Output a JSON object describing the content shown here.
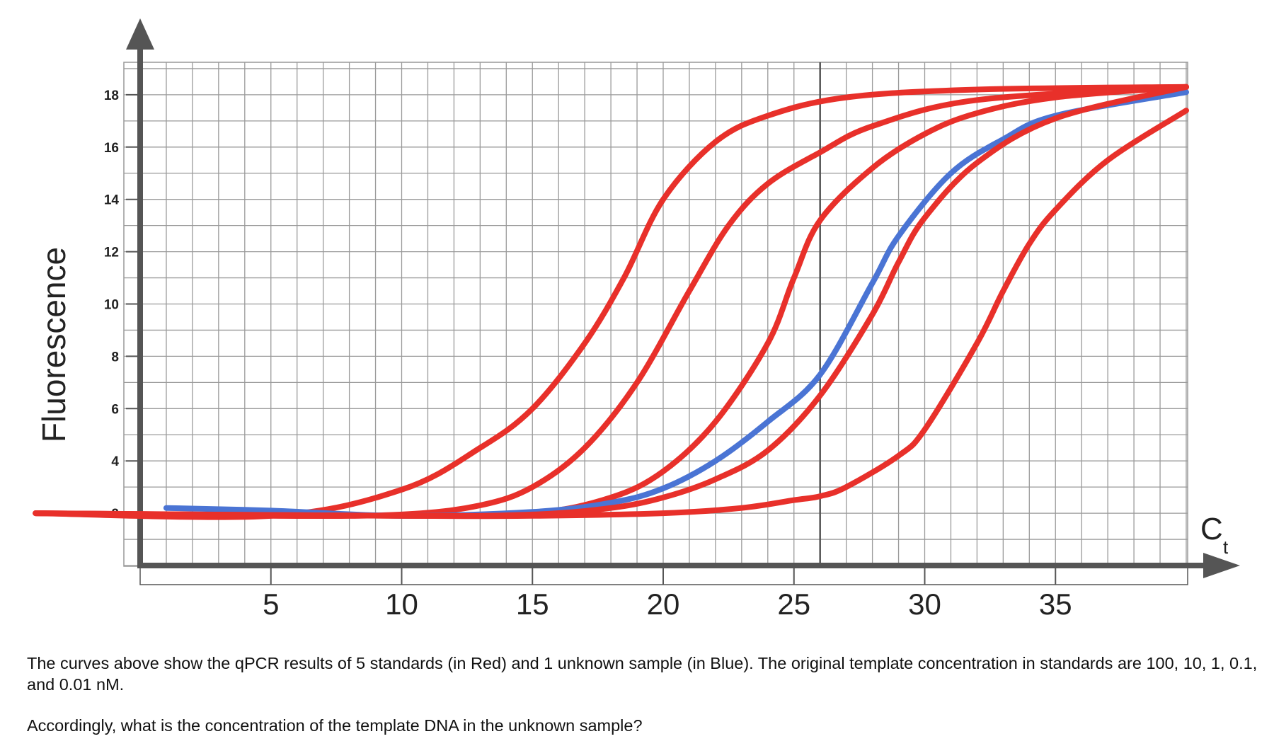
{
  "chart_data": {
    "type": "line",
    "xlabel": "C",
    "xlabel_sub": "t",
    "ylabel": "Fluorescence",
    "x_ticks": [
      5,
      10,
      15,
      20,
      25,
      30,
      35
    ],
    "y_ticks": [
      2,
      4,
      6,
      8,
      10,
      12,
      14,
      16,
      18
    ],
    "xlim": [
      0,
      40
    ],
    "ylim": [
      0,
      19
    ],
    "grid": true,
    "threshold_ct": 26,
    "series": [
      {
        "color": "#e8302a",
        "x": [
          -4,
          5,
          10,
          13,
          15,
          17,
          18.5,
          20,
          22,
          24,
          27,
          32,
          40
        ],
        "y": [
          2.0,
          1.9,
          2.9,
          4.5,
          6.0,
          8.5,
          11.0,
          14.0,
          16.2,
          17.2,
          17.9,
          18.2,
          18.3
        ]
      },
      {
        "color": "#e8302a",
        "x": [
          -4,
          5,
          10,
          13,
          15,
          17,
          19,
          21,
          22.5,
          24,
          26,
          28,
          32,
          40
        ],
        "y": [
          2.0,
          1.9,
          1.95,
          2.3,
          3.0,
          4.5,
          7.0,
          10.5,
          13.0,
          14.6,
          15.8,
          16.8,
          17.8,
          18.3
        ]
      },
      {
        "color": "#e8302a",
        "x": [
          -4,
          10,
          15,
          18,
          20,
          22,
          24,
          25,
          26,
          28,
          30,
          32,
          35,
          40
        ],
        "y": [
          2.0,
          1.9,
          2.0,
          2.6,
          3.6,
          5.5,
          8.5,
          11.0,
          13.2,
          15.2,
          16.5,
          17.3,
          17.9,
          18.3
        ]
      },
      {
        "color": "#4a74d4",
        "x": [
          1,
          5,
          10,
          15,
          18,
          20,
          22,
          24,
          26,
          28,
          29,
          31,
          33,
          35,
          40
        ],
        "y": [
          2.2,
          2.1,
          1.9,
          2.05,
          2.4,
          2.95,
          4.0,
          5.5,
          7.3,
          10.8,
          12.6,
          15.0,
          16.3,
          17.2,
          18.1
        ]
      },
      {
        "color": "#e8302a",
        "x": [
          -4,
          10,
          15,
          18,
          20,
          22,
          24,
          26,
          28,
          29,
          30,
          32,
          35,
          40
        ],
        "y": [
          2.0,
          1.9,
          1.95,
          2.2,
          2.6,
          3.3,
          4.4,
          6.5,
          9.6,
          11.6,
          13.3,
          15.4,
          17.1,
          18.3
        ]
      },
      {
        "color": "#e8302a",
        "x": [
          -4,
          10,
          15,
          20,
          23,
          25,
          26,
          27,
          29,
          30,
          32,
          33,
          34,
          35,
          37,
          40
        ],
        "y": [
          2.0,
          1.9,
          1.9,
          2.0,
          2.2,
          2.5,
          2.65,
          3.0,
          4.2,
          5.2,
          8.5,
          10.5,
          12.3,
          13.6,
          15.5,
          17.4
        ]
      }
    ]
  },
  "caption": {
    "paragraph1": "The curves above show the qPCR results of 5 standards (in Red) and 1 unknown sample (in Blue). The original template concentration in standards are 100, 10, 1, 0.1, and 0.01 nM.",
    "paragraph2": "Accordingly, what is the concentration of the template DNA in the unknown sample?"
  }
}
